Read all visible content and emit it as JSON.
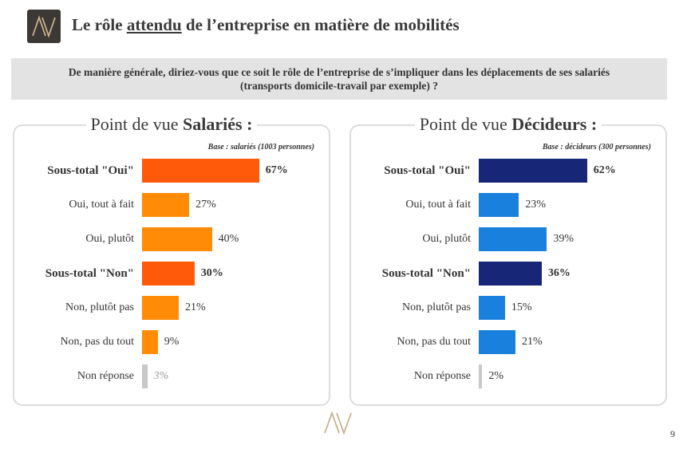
{
  "header": {
    "title_part1": "Le rôle ",
    "title_underlined": "attendu",
    "title_part2": " de l’entreprise en matière de mobilités"
  },
  "question": {
    "line1": "De manière générale, diriez-vous que ce soit le rôle de l’entreprise de s’impliquer dans les déplacements de ses salariés",
    "line2": "(transports domicile-travail par exemple) ?"
  },
  "colors": {
    "salaries_total": "#ff5a0a",
    "salaries_detail": "#ff8b06",
    "salaries_nonreponse": "#c8c8c8",
    "decideurs_total": "#172677",
    "decideurs_detail": "#1a80de",
    "decideurs_nonreponse": "#c8c8c8"
  },
  "chart_data": [
    {
      "type": "bar",
      "orientation": "horizontal",
      "title_prefix": "Point de vue ",
      "title_bold": "Salariés :",
      "base_note": "Base : salariés (1003 personnes)",
      "categories": [
        "Sous-total \"Oui\"",
        "Oui, tout à fait",
        "Oui, plutôt",
        "Sous-total \"Non\"",
        "Non, plutôt pas",
        "Non, pas du tout",
        "Non réponse"
      ],
      "values": [
        67,
        27,
        40,
        30,
        21,
        9,
        3
      ],
      "value_labels": [
        "67%",
        "27%",
        "40%",
        "30%",
        "21%",
        "9%",
        "3%"
      ],
      "is_total": [
        true,
        false,
        false,
        true,
        false,
        false,
        false
      ],
      "is_nonreponse": [
        false,
        false,
        false,
        false,
        false,
        false,
        true
      ],
      "xlim": [
        0,
        100
      ],
      "grid": false
    },
    {
      "type": "bar",
      "orientation": "horizontal",
      "title_prefix": "Point de vue ",
      "title_bold": "Décideurs :",
      "base_note": "Base : décideurs (300 personnes)",
      "categories": [
        "Sous-total \"Oui\"",
        "Oui, tout à fait",
        "Oui, plutôt",
        "Sous-total \"Non\"",
        "Non, plutôt pas",
        "Non, pas du tout",
        "Non réponse"
      ],
      "values": [
        62,
        23,
        39,
        36,
        15,
        21,
        2
      ],
      "value_labels": [
        "62%",
        "23%",
        "39%",
        "36%",
        "15%",
        "21%",
        "2%"
      ],
      "is_total": [
        true,
        false,
        false,
        true,
        false,
        false,
        false
      ],
      "is_nonreponse": [
        false,
        false,
        false,
        false,
        false,
        false,
        true
      ],
      "xlim": [
        0,
        100
      ],
      "grid": false
    }
  ],
  "footer": {
    "page_number": "9"
  }
}
